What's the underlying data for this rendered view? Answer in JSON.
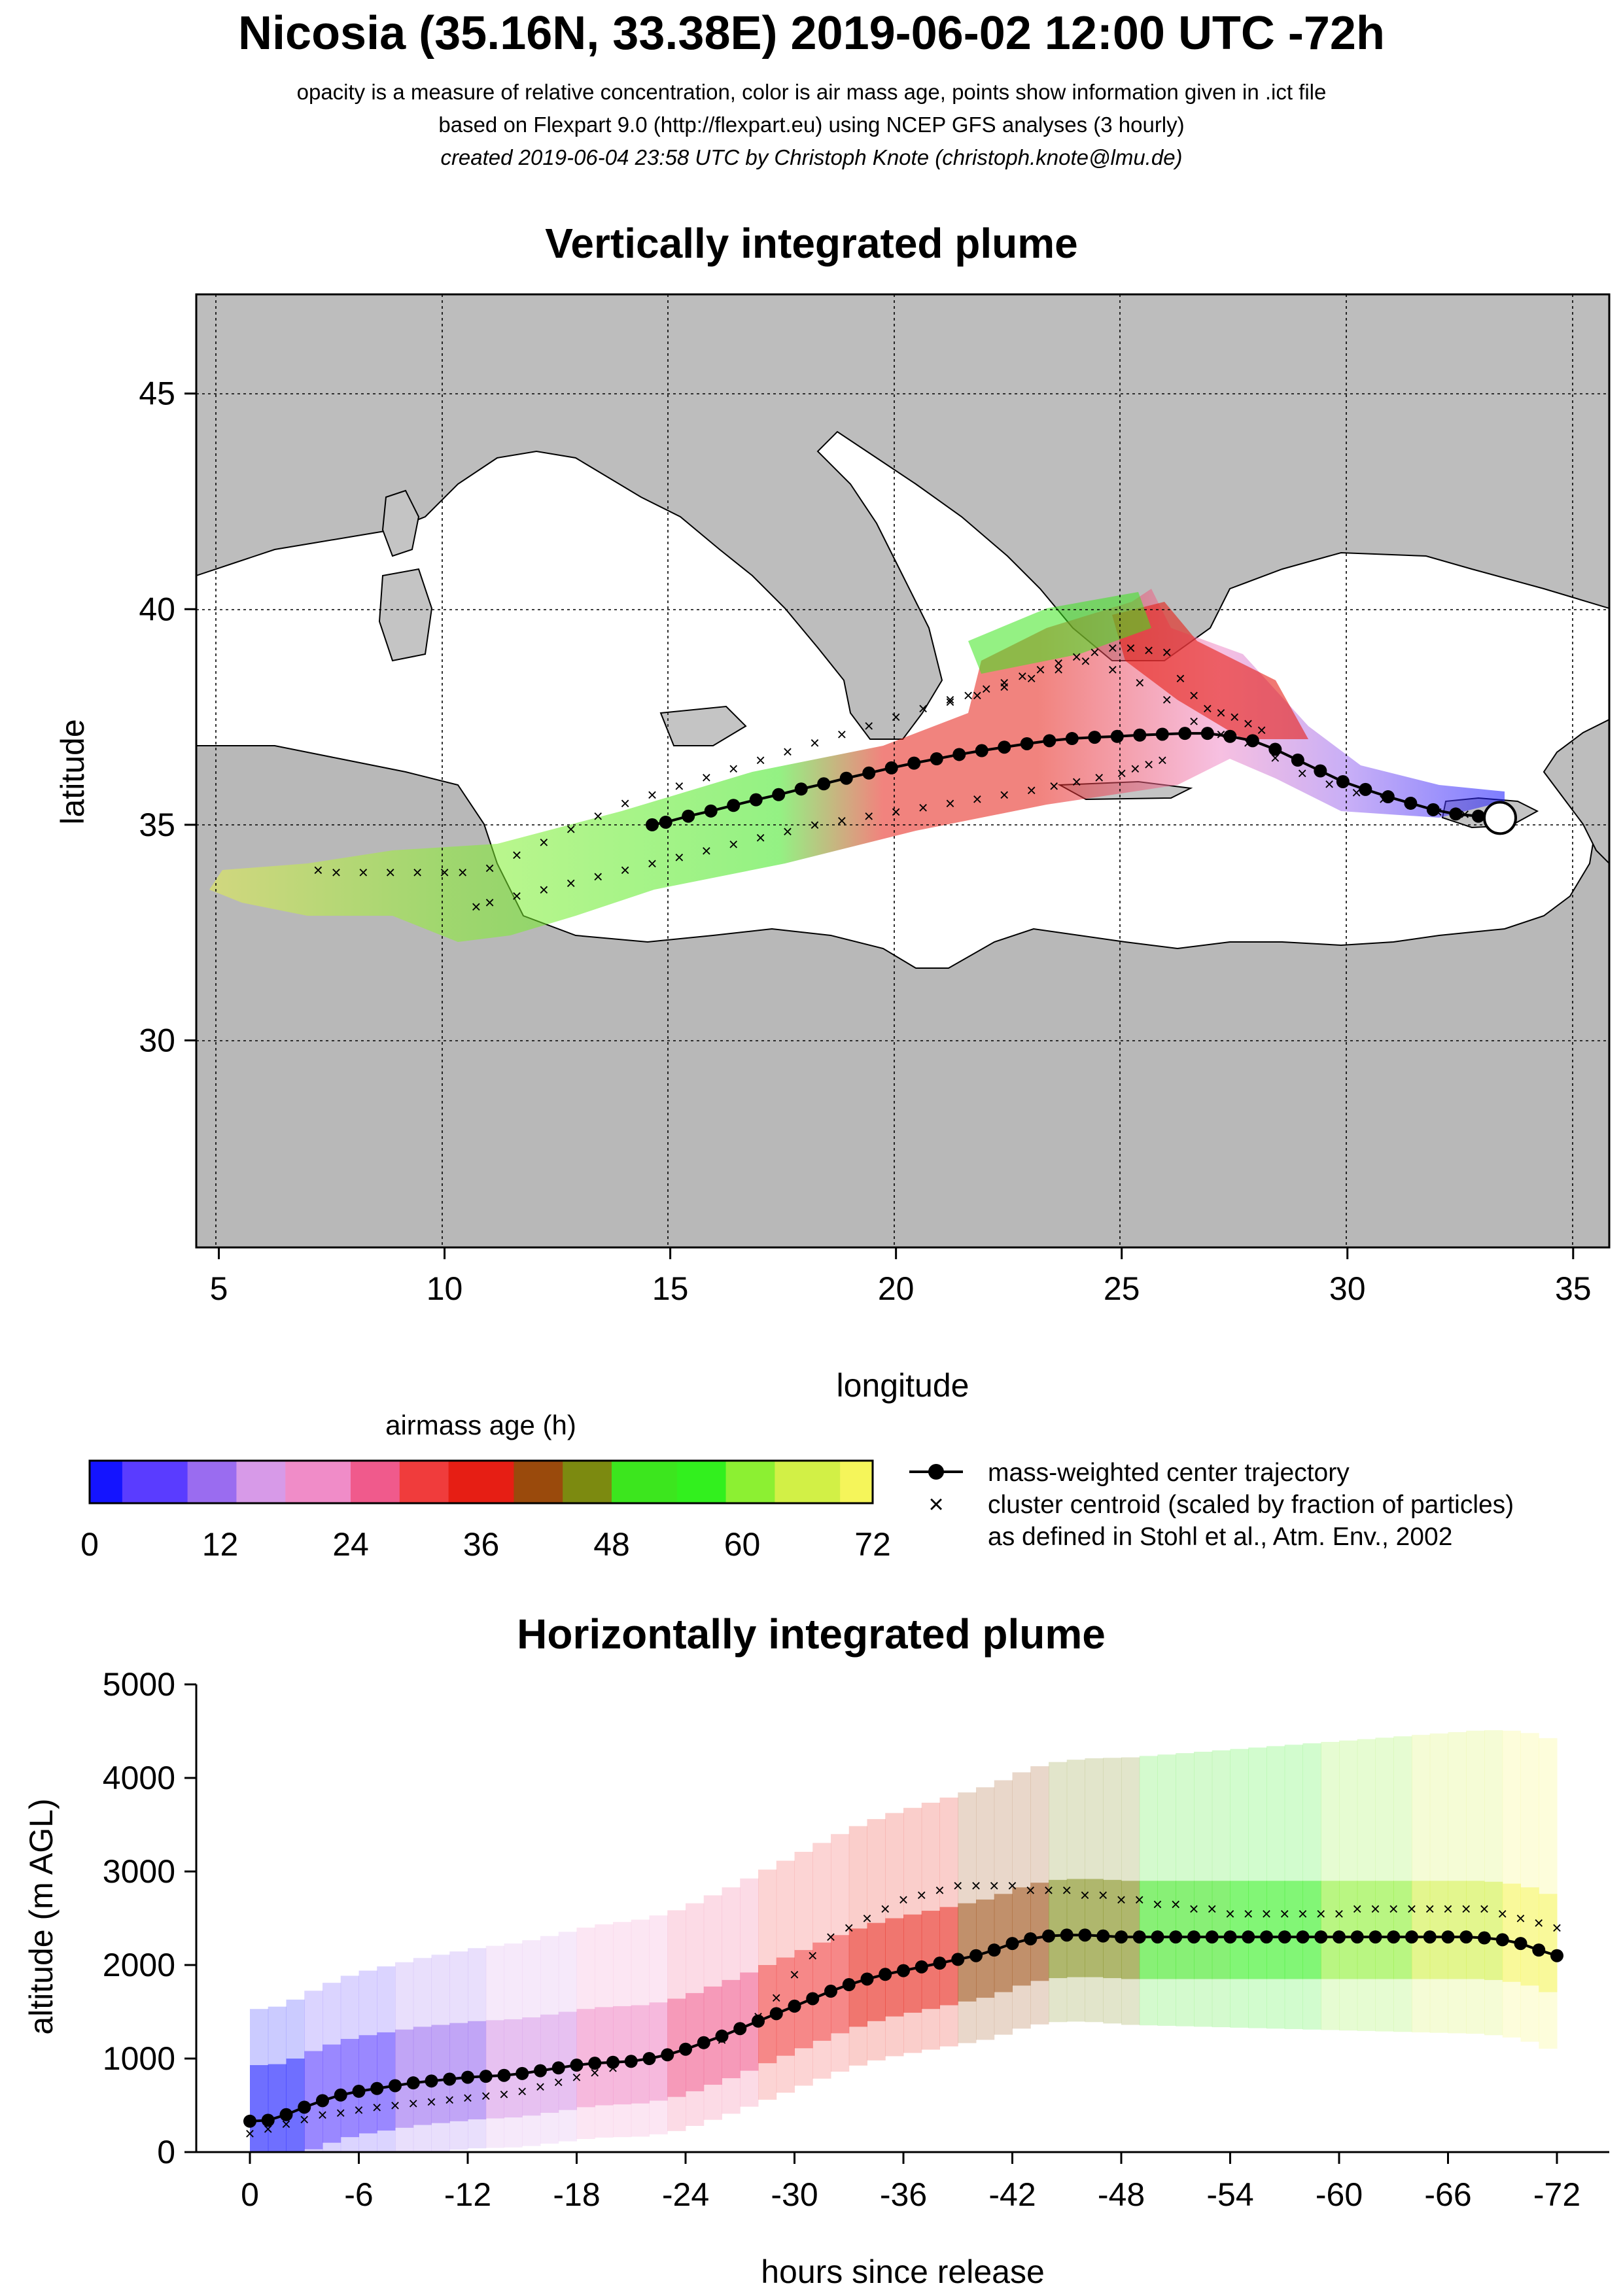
{
  "header": {
    "title": "Nicosia (35.16N, 33.38E) 2019-06-02 12:00 UTC -72h",
    "subtitle_1": "opacity is a measure of relative concentration, color is air mass age, points show information given in .ict file",
    "subtitle_2": "based on Flexpart 9.0 (http://flexpart.eu) using NCEP GFS analyses (3 hourly)",
    "subtitle_3": "created 2019-06-04 23:58 UTC by Christoph Knote (christoph.knote@lmu.de)"
  },
  "colors": {
    "age_scale": [
      "#1414ff",
      "#5a3cff",
      "#9a6cf0",
      "#d79ae8",
      "#f08cc8",
      "#f05a8c",
      "#f03c3c",
      "#e61e14",
      "#9a4a0c",
      "#7c8a10",
      "#3ce61e",
      "#32f01e",
      "#8cf032",
      "#d2f046",
      "#f5f55a"
    ],
    "center_trajectory": "#000000",
    "land_gray": "#bdbdbd",
    "sea": "#ffffff"
  },
  "chart_data": [
    {
      "type": "scatter",
      "title": "Vertically integrated plume",
      "xlabel": "longitude",
      "ylabel": "latitude",
      "xlim": [
        4.5,
        35.8
      ],
      "ylim": [
        25.2,
        47.3
      ],
      "xticks": [
        5,
        10,
        15,
        20,
        25,
        30,
        35
      ],
      "yticks": [
        30,
        35,
        40,
        45
      ],
      "grid": true,
      "release_site": {
        "lon": 33.38,
        "lat": 35.16
      },
      "series": [
        {
          "name": "mass-weighted center trajectory",
          "x": [
            33.38,
            32.9,
            32.4,
            31.9,
            31.4,
            30.9,
            30.4,
            29.9,
            29.4,
            28.9,
            28.4,
            27.9,
            27.4,
            26.9,
            26.4,
            25.9,
            25.4,
            24.9,
            24.4,
            23.9,
            23.4,
            22.9,
            22.4,
            21.9,
            21.4,
            20.9,
            20.4,
            19.9,
            19.4,
            18.9,
            18.4,
            17.9,
            17.4,
            16.9,
            16.4,
            15.9,
            15.4,
            14.9,
            14.6
          ],
          "y": [
            35.16,
            35.2,
            35.25,
            35.35,
            35.5,
            35.65,
            35.82,
            36.0,
            36.25,
            36.5,
            36.75,
            36.95,
            37.05,
            37.12,
            37.12,
            37.1,
            37.08,
            37.05,
            37.03,
            37.0,
            36.95,
            36.88,
            36.8,
            36.72,
            36.63,
            36.53,
            36.43,
            36.32,
            36.2,
            36.08,
            35.95,
            35.83,
            35.7,
            35.58,
            35.45,
            35.32,
            35.2,
            35.06,
            35.0
          ]
        },
        {
          "name": "cluster centroid (scaled by fraction of particles)",
          "x": [
            33.2,
            32.6,
            32.0,
            31.4,
            30.8,
            30.2,
            29.6,
            29.0,
            28.4,
            27.8,
            27.2,
            26.6,
            26.0,
            25.4,
            24.8,
            24.2,
            23.6,
            23.0,
            22.4,
            21.8,
            21.2,
            20.6,
            20.0,
            19.4,
            18.8,
            18.2,
            17.6,
            17.0,
            16.4,
            15.8,
            15.2,
            14.6,
            14.0,
            13.4,
            12.8,
            12.2,
            11.6,
            11.0,
            10.4,
            10.0,
            9.4,
            8.8,
            8.2,
            7.6,
            7.2,
            26.0,
            25.6,
            25.2,
            24.8,
            24.4,
            24.0,
            23.6,
            23.2,
            22.8,
            22.4,
            22.0,
            21.6,
            21.2,
            26.3,
            26.6,
            26.9,
            27.2,
            27.5,
            27.8,
            28.1,
            25.9,
            25.6,
            25.3,
            25.0,
            24.5,
            24.0,
            23.5,
            23.0,
            22.4,
            21.8,
            21.2,
            20.6,
            20.0,
            19.4,
            18.8,
            18.2,
            17.6,
            17.0,
            16.4,
            15.8,
            15.2,
            14.6,
            14.0,
            13.4,
            12.8,
            12.2,
            11.6,
            11.0,
            10.7
          ],
          "y": [
            35.2,
            35.25,
            35.3,
            35.45,
            35.6,
            35.75,
            35.95,
            36.2,
            36.55,
            36.9,
            37.1,
            37.4,
            37.9,
            38.3,
            38.6,
            38.8,
            38.6,
            38.4,
            38.2,
            38.0,
            37.9,
            37.7,
            37.5,
            37.3,
            37.1,
            36.9,
            36.7,
            36.5,
            36.3,
            36.1,
            35.9,
            35.7,
            35.5,
            35.2,
            34.9,
            34.6,
            34.3,
            34.0,
            33.9,
            33.9,
            33.9,
            33.9,
            33.9,
            33.9,
            33.95,
            39.0,
            39.05,
            39.1,
            39.1,
            39.0,
            38.9,
            38.75,
            38.6,
            38.45,
            38.3,
            38.15,
            38.0,
            37.85,
            38.4,
            38.0,
            37.7,
            37.6,
            37.5,
            37.35,
            37.2,
            36.5,
            36.4,
            36.3,
            36.2,
            36.1,
            36.0,
            35.9,
            35.8,
            35.7,
            35.6,
            35.5,
            35.4,
            35.3,
            35.2,
            35.1,
            35.0,
            34.85,
            34.7,
            34.55,
            34.4,
            34.25,
            34.1,
            33.95,
            33.8,
            33.65,
            33.5,
            33.35,
            33.2,
            33.1
          ]
        }
      ]
    },
    {
      "type": "heatmap",
      "title": "airmass age (h)",
      "categories": [
        "0",
        "12",
        "24",
        "36",
        "48",
        "60",
        "72"
      ],
      "xlim": [
        0,
        72
      ]
    },
    {
      "type": "line",
      "title": "Horizontally integrated plume",
      "xlabel": "hours since release",
      "ylabel": "altitude (m AGL)",
      "xlim": [
        0,
        -72
      ],
      "ylim": [
        0,
        5000
      ],
      "xticks": [
        0,
        -6,
        -12,
        -18,
        -24,
        -30,
        -36,
        -42,
        -48,
        -54,
        -60,
        -66,
        -72
      ],
      "xtick_labels": [
        "0",
        "-6",
        "-12",
        "-18",
        "-24",
        "-30",
        "-36",
        "-42",
        "-48",
        "-54",
        "-60",
        "-66",
        "-72"
      ],
      "yticks": [
        0,
        1000,
        2000,
        3000,
        4000,
        5000
      ],
      "grid": false,
      "series": [
        {
          "name": "mass-weighted center trajectory",
          "x": [
            0,
            -1,
            -2,
            -3,
            -4,
            -5,
            -6,
            -7,
            -8,
            -9,
            -10,
            -11,
            -12,
            -13,
            -14,
            -15,
            -16,
            -17,
            -18,
            -19,
            -20,
            -21,
            -22,
            -23,
            -24,
            -25,
            -26,
            -27,
            -28,
            -29,
            -30,
            -31,
            -32,
            -33,
            -34,
            -35,
            -36,
            -37,
            -38,
            -39,
            -40,
            -41,
            -42,
            -43,
            -44,
            -45,
            -46,
            -47,
            -48,
            -49,
            -50,
            -51,
            -52,
            -53,
            -54,
            -55,
            -56,
            -57,
            -58,
            -59,
            -60,
            -61,
            -62,
            -63,
            -64,
            -65,
            -66,
            -67,
            -68,
            -69,
            -70,
            -71,
            -72
          ],
          "y": [
            330,
            340,
            400,
            480,
            550,
            610,
            650,
            680,
            710,
            740,
            760,
            780,
            800,
            810,
            820,
            840,
            870,
            900,
            930,
            950,
            960,
            970,
            1000,
            1040,
            1100,
            1170,
            1240,
            1320,
            1400,
            1480,
            1560,
            1640,
            1720,
            1790,
            1850,
            1900,
            1940,
            1980,
            2020,
            2060,
            2100,
            2160,
            2230,
            2280,
            2310,
            2320,
            2320,
            2310,
            2300,
            2300,
            2300,
            2300,
            2300,
            2300,
            2300,
            2300,
            2300,
            2300,
            2300,
            2300,
            2300,
            2300,
            2300,
            2300,
            2300,
            2300,
            2300,
            2300,
            2290,
            2270,
            2230,
            2160,
            2100
          ]
        },
        {
          "name": "cluster centroid (scaled by fraction of particles)",
          "x": [
            0,
            -1,
            -2,
            -3,
            -4,
            -5,
            -6,
            -7,
            -8,
            -9,
            -10,
            -11,
            -12,
            -13,
            -14,
            -15,
            -16,
            -17,
            -18,
            -19,
            -20,
            -21,
            -22,
            -23,
            -24,
            -25,
            -26,
            -27,
            -28,
            -29,
            -30,
            -31,
            -32,
            -33,
            -34,
            -35,
            -36,
            -37,
            -38,
            -39,
            -40,
            -41,
            -42,
            -43,
            -44,
            -45,
            -46,
            -47,
            -48,
            -49,
            -50,
            -51,
            -52,
            -53,
            -54,
            -55,
            -56,
            -57,
            -58,
            -59,
            -60,
            -61,
            -62,
            -63,
            -64,
            -65,
            -66,
            -67,
            -68,
            -69,
            -70,
            -71,
            -72
          ],
          "y": [
            200,
            250,
            300,
            350,
            400,
            420,
            450,
            480,
            500,
            520,
            540,
            560,
            580,
            600,
            620,
            650,
            700,
            750,
            800,
            850,
            900,
            950,
            1000,
            1050,
            1100,
            1150,
            1200,
            1300,
            1450,
            1650,
            1900,
            2100,
            2300,
            2400,
            2500,
            2600,
            2700,
            2750,
            2800,
            2850,
            2850,
            2850,
            2850,
            2800,
            2800,
            2800,
            2750,
            2750,
            2700,
            2700,
            2650,
            2650,
            2600,
            2600,
            2550,
            2550,
            2550,
            2550,
            2550,
            2550,
            2550,
            2600,
            2600,
            2600,
            2600,
            2600,
            2600,
            2600,
            2600,
            2550,
            2500,
            2450,
            2400
          ]
        }
      ]
    }
  ],
  "legend": {
    "center_trajectory_label": "mass-weighted center trajectory",
    "cluster_label": "cluster centroid (scaled by fraction of particles)",
    "reference_label": "as defined in Stohl et al., Atm. Env., 2002"
  }
}
